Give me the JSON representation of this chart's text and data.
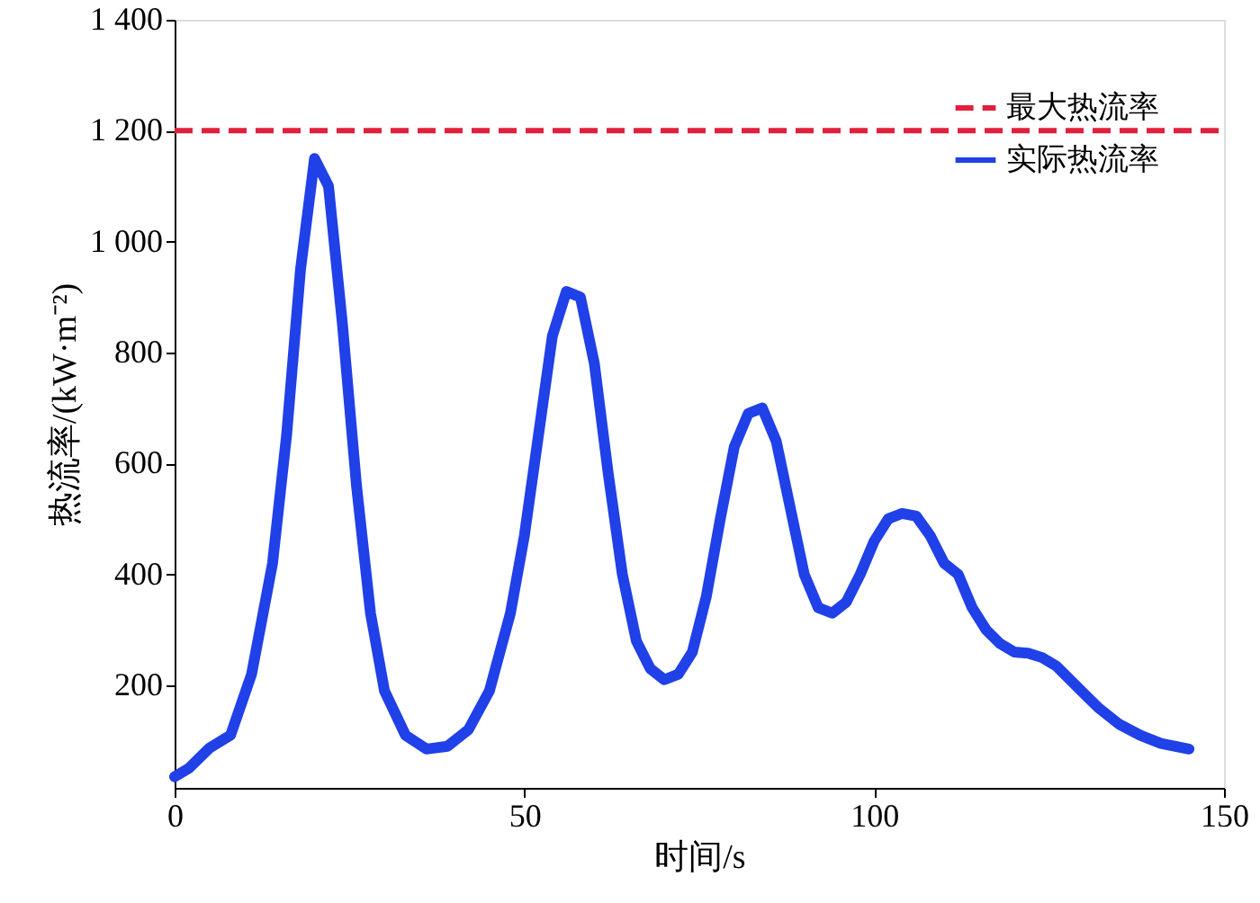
{
  "chart_data": {
    "type": "line",
    "xlabel": "时间/s",
    "ylabel": "热流率/(kW·m⁻²)",
    "xlim": [
      0,
      150
    ],
    "ylim": [
      15,
      1400
    ],
    "xticks": [
      0,
      50,
      100,
      150
    ],
    "yticks": [
      200,
      400,
      600,
      800,
      {
        "value": 1000,
        "label": "1 000"
      },
      {
        "value": 1200,
        "label": "1 200"
      },
      {
        "value": 1400,
        "label": "1 400"
      }
    ],
    "grid": false,
    "legend": "top right",
    "line_style": "solid",
    "ref_lines": [
      {
        "axis": "y",
        "value": 1200,
        "label": "最大热流率",
        "color": "#e0203c",
        "line_style": "dashed"
      }
    ],
    "x": [
      0,
      2,
      5,
      8,
      11,
      14,
      16,
      18,
      20,
      22,
      24,
      26,
      28,
      30,
      33,
      36,
      39,
      42,
      45,
      48,
      50,
      52,
      54,
      56,
      58,
      60,
      62,
      64,
      66,
      68,
      70,
      72,
      74,
      76,
      78,
      80,
      82,
      84,
      86,
      88,
      90,
      92,
      94,
      96,
      98,
      100,
      102,
      104,
      106,
      108,
      110,
      112,
      114,
      116,
      118,
      120,
      122,
      124,
      126,
      128,
      130,
      132,
      135,
      138,
      141,
      145
    ],
    "series": [
      {
        "name": "实际热流率",
        "color": "#2040e8",
        "values": [
          35,
          50,
          87,
          110,
          220,
          420,
          650,
          950,
          1150,
          1100,
          850,
          560,
          330,
          190,
          110,
          85,
          90,
          120,
          190,
          330,
          470,
          650,
          830,
          910,
          900,
          780,
          580,
          400,
          280,
          230,
          210,
          220,
          260,
          360,
          500,
          630,
          690,
          700,
          640,
          520,
          400,
          340,
          330,
          350,
          400,
          460,
          500,
          510,
          505,
          470,
          420,
          400,
          340,
          300,
          275,
          260,
          258,
          250,
          235,
          210,
          185,
          160,
          130,
          110,
          95,
          85
        ]
      }
    ]
  }
}
